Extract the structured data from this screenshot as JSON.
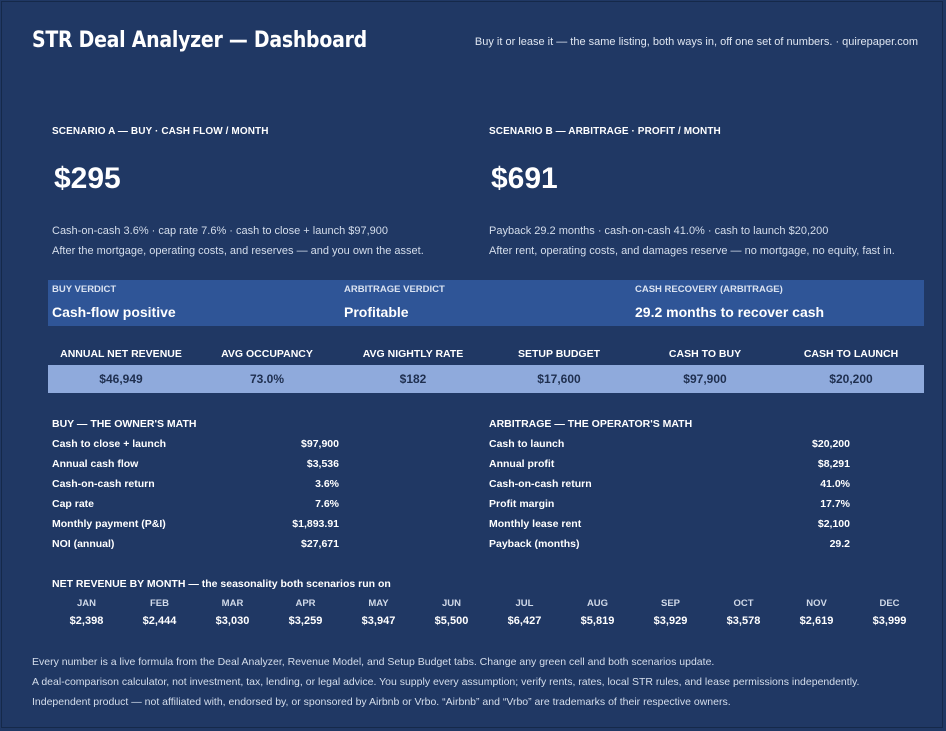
{
  "header": {
    "title": "STR Deal Analyzer — Dashboard",
    "tagline": "Buy it or lease it — the same listing, both ways in, off one set of numbers.  ·  quirepaper.com"
  },
  "scenario_a": {
    "heading": "SCENARIO A — BUY  ·  CASH FLOW / MONTH",
    "big_value": "$295",
    "line1": "Cash-on-cash 3.6%  ·  cap rate 7.6%  ·  cash to close + launch $97,900",
    "line2": "After the mortgage, operating costs, and reserves — and you own the asset."
  },
  "scenario_b": {
    "heading": "SCENARIO B — ARBITRAGE  ·  PROFIT / MONTH",
    "big_value": "$691",
    "line1": "Payback 29.2 months  ·  cash-on-cash 41.0%  ·  cash to launch $20,200",
    "line2": "After rent, operating costs, and damages reserve — no mortgage, no equity, fast in."
  },
  "verdicts": [
    {
      "label": "BUY VERDICT",
      "value": "Cash-flow positive"
    },
    {
      "label": "ARBITRAGE VERDICT",
      "value": "Profitable"
    },
    {
      "label": "CASH RECOVERY (ARBITRAGE)",
      "value": "29.2 months to recover cash"
    }
  ],
  "kpis": [
    {
      "label": "ANNUAL NET REVENUE",
      "value": "$46,949"
    },
    {
      "label": "AVG OCCUPANCY",
      "value": "73.0%"
    },
    {
      "label": "AVG NIGHTLY RATE",
      "value": "$182"
    },
    {
      "label": "SETUP BUDGET",
      "value": "$17,600"
    },
    {
      "label": "CASH TO BUY",
      "value": "$97,900"
    },
    {
      "label": "CASH TO LAUNCH",
      "value": "$20,200"
    }
  ],
  "buy_math": {
    "heading": "BUY — THE OWNER'S MATH",
    "rows": [
      {
        "label": "Cash to close + launch",
        "value": "$97,900"
      },
      {
        "label": "Annual cash flow",
        "value": "$3,536"
      },
      {
        "label": "Cash-on-cash return",
        "value": "3.6%"
      },
      {
        "label": "Cap rate",
        "value": "7.6%"
      },
      {
        "label": "Monthly payment (P&I)",
        "value": "$1,893.91"
      },
      {
        "label": "NOI (annual)",
        "value": "$27,671"
      }
    ]
  },
  "arb_math": {
    "heading": "ARBITRAGE — THE OPERATOR'S MATH",
    "rows": [
      {
        "label": "Cash to launch",
        "value": "$20,200"
      },
      {
        "label": "Annual profit",
        "value": "$8,291"
      },
      {
        "label": "Cash-on-cash return",
        "value": "41.0%"
      },
      {
        "label": "Profit margin",
        "value": "17.7%"
      },
      {
        "label": "Monthly lease rent",
        "value": "$2,100"
      },
      {
        "label": "Payback (months)",
        "value": "29.2"
      }
    ]
  },
  "monthly": {
    "title": "NET REVENUE BY MONTH — the seasonality both scenarios run on",
    "months": [
      "JAN",
      "FEB",
      "MAR",
      "APR",
      "MAY",
      "JUN",
      "JUL",
      "AUG",
      "SEP",
      "OCT",
      "NOV",
      "DEC"
    ],
    "values": [
      "$2,398",
      "$2,444",
      "$3,030",
      "$3,259",
      "$3,947",
      "$5,500",
      "$6,427",
      "$5,819",
      "$3,929",
      "$3,578",
      "$2,619",
      "$3,999"
    ]
  },
  "footer": {
    "line1": "Every number is a live formula from the Deal Analyzer, Revenue Model, and Setup Budget tabs. Change any green cell and both scenarios update.",
    "line2": "A deal-comparison calculator, not investment, tax, lending, or legal advice. You supply every assumption; verify rents, rates, local STR rules, and lease permissions independently.",
    "line3": "Independent product — not affiliated with, endorsed by, or sponsored by Airbnb or Vrbo. “Airbnb” and “Vrbo” are trademarks of their respective owners."
  },
  "colors": {
    "background": "#203864",
    "verdict_band": "#2f5597",
    "kpi_band": "#8faadc"
  }
}
